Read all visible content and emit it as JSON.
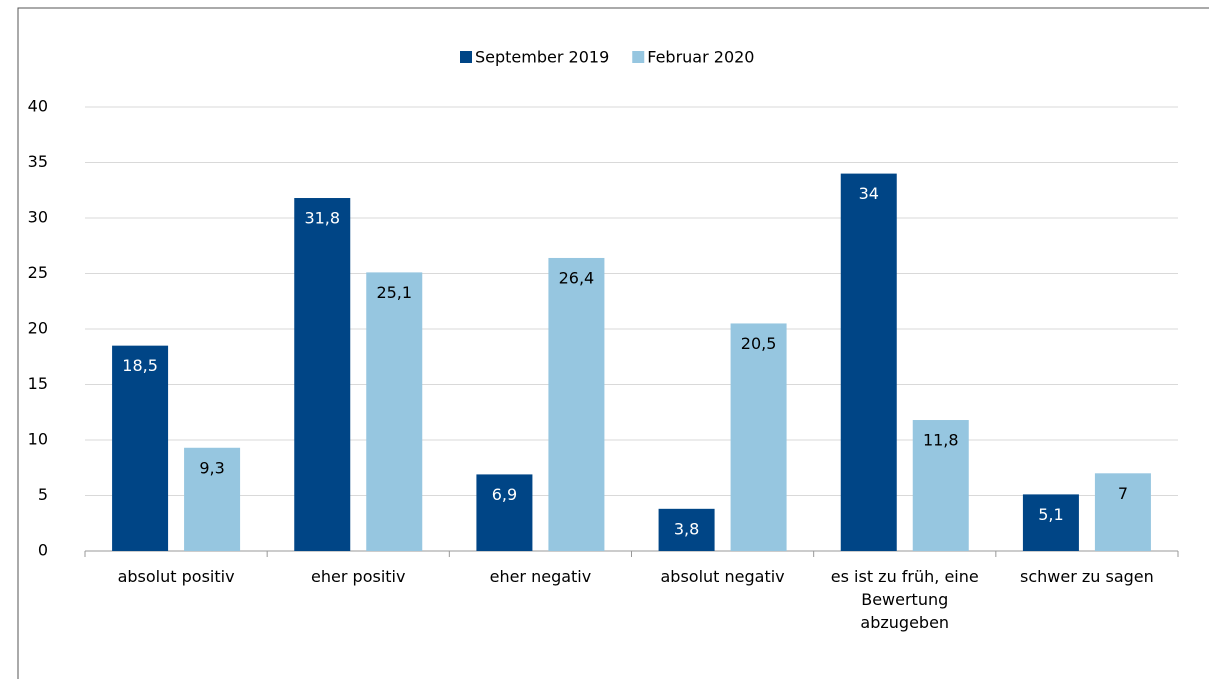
{
  "chart_data": {
    "type": "bar",
    "categories": [
      "absolut positiv",
      "eher positiv",
      "eher negativ",
      "absolut negativ",
      "es ist zu früh, eine Bewertung abzugeben",
      "schwer zu sagen"
    ],
    "series": [
      {
        "name": "September 2019",
        "color": "#004586",
        "values": [
          18.5,
          31.8,
          6.9,
          3.8,
          34,
          5.1
        ],
        "value_labels": [
          "18,5",
          "31,8",
          "6,9",
          "3,8",
          "34",
          "5,1"
        ]
      },
      {
        "name": "Februar 2020",
        "color": "#96c6e0",
        "values": [
          9.3,
          25.1,
          26.4,
          20.5,
          11.8,
          7
        ],
        "value_labels": [
          "9,3",
          "25,1",
          "26,4",
          "20,5",
          "11,8",
          "7"
        ]
      }
    ],
    "ylim": [
      0,
      40
    ],
    "yticks": [
      0,
      5,
      10,
      15,
      20,
      25,
      30,
      35,
      40
    ],
    "grid": true,
    "legend": "top"
  }
}
